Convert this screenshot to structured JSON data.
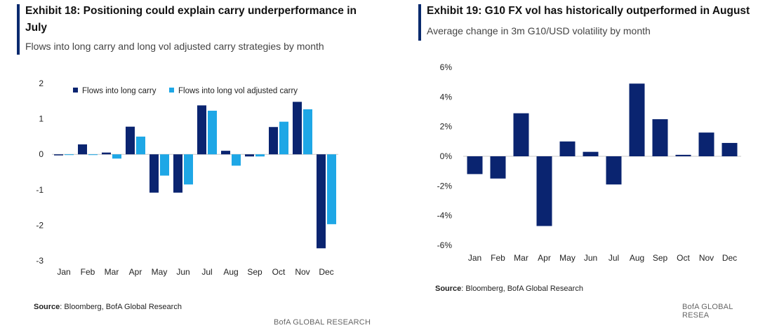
{
  "left": {
    "title": "Exhibit 18: Positioning could explain carry underperformance in July",
    "subtitle": "Flows into long carry and long vol adjusted carry strategies by month",
    "source_label": "Source",
    "source_text": ": Bloomberg, BofA Global Research",
    "footer": "BofA GLOBAL RESEARCH"
  },
  "right": {
    "title": "Exhibit 19: G10 FX vol has historically outperformed in August",
    "subtitle": "Average change in 3m G10/USD volatility by month",
    "source_label": "Source",
    "source_text": ": Bloomberg, BofA Global Research",
    "footer": "BofA GLOBAL RESEA"
  },
  "colors": {
    "dark": "#0a2470",
    "light": "#1ea7e6",
    "accent": "#0a2a6e"
  },
  "chart_data": [
    {
      "type": "bar",
      "categories": [
        "Jan",
        "Feb",
        "Mar",
        "Apr",
        "May",
        "Jun",
        "Jul",
        "Aug",
        "Sep",
        "Oct",
        "Nov",
        "Dec"
      ],
      "series": [
        {
          "name": "Flows into long carry",
          "values": [
            -0.03,
            0.28,
            0.05,
            0.78,
            -1.08,
            -1.08,
            1.38,
            0.1,
            -0.06,
            0.77,
            1.48,
            -2.65
          ]
        },
        {
          "name": "Flows into long vol adjusted carry",
          "values": [
            0.0,
            -0.02,
            -0.12,
            0.5,
            -0.6,
            -0.85,
            1.23,
            -0.32,
            -0.06,
            0.92,
            1.27,
            -1.97
          ]
        }
      ],
      "yticks": [
        "2",
        "1",
        "0",
        "-1",
        "-2",
        "-3"
      ],
      "ylim": [
        -3,
        2
      ],
      "legend": "top",
      "grid": false
    },
    {
      "type": "bar",
      "categories": [
        "Jan",
        "Feb",
        "Mar",
        "Apr",
        "May",
        "Jun",
        "Jul",
        "Aug",
        "Sep",
        "Oct",
        "Nov",
        "Dec"
      ],
      "series": [
        {
          "values": [
            -1.2,
            -1.5,
            2.9,
            -4.7,
            1.0,
            0.3,
            -1.9,
            4.9,
            2.5,
            0.1,
            1.6,
            0.9
          ]
        }
      ],
      "yticks": [
        "6%",
        "4%",
        "2%",
        "0%",
        "-2%",
        "-4%",
        "-6%"
      ],
      "ylim": [
        -6,
        6
      ],
      "grid": false
    }
  ]
}
